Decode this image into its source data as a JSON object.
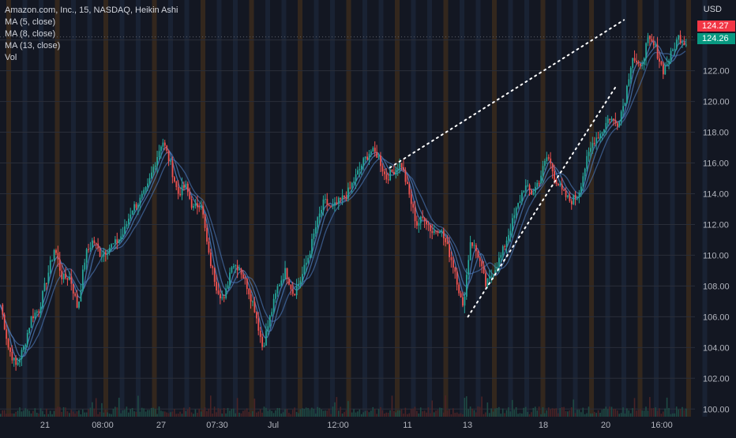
{
  "legend": {
    "title": "Amazon.com, Inc., 15, NASDAQ, Heikin Ashi",
    "ma5": "MA (5, close)",
    "ma8": "MA (8, close)",
    "ma13": "MA (13, close)",
    "vol": "Vol"
  },
  "currency": "USD",
  "price_tags": [
    {
      "label": "124.27",
      "value": 124.27,
      "color": "#f23645"
    },
    {
      "label": "124.26",
      "value": 124.26,
      "color": "#089981"
    }
  ],
  "colors": {
    "background": "#131722",
    "up": "#26a69a",
    "down": "#ef5350",
    "ma": "#4a77b4",
    "session_band_orange": "#3a2a1c",
    "session_band_blue": "#1b2436",
    "trendline": "#ffffff"
  },
  "chart_data": {
    "type": "candlestick",
    "style": "Heikin Ashi",
    "symbol": "Amazon.com, Inc.",
    "exchange": "NASDAQ",
    "interval": "15",
    "y_axis": {
      "ticks": [
        "100.00",
        "102.00",
        "104.00",
        "106.00",
        "108.00",
        "110.00",
        "112.00",
        "114.00",
        "116.00",
        "118.00",
        "120.00",
        "122.00",
        "124.00"
      ],
      "range": [
        99.5,
        126.6
      ]
    },
    "x_axis": {
      "ticks": [
        "21",
        "08:00",
        "27",
        "07:30",
        "Jul",
        "12:00",
        "11",
        "13",
        "18",
        "20",
        "16:00"
      ]
    },
    "price_path": [
      [
        0,
        106.8
      ],
      [
        1,
        104.0
      ],
      [
        2,
        102.8
      ],
      [
        3,
        104.0
      ],
      [
        4,
        106.0
      ],
      [
        5,
        106.5
      ],
      [
        6,
        108.5
      ],
      [
        7,
        110.5
      ],
      [
        8,
        108.5
      ],
      [
        9,
        108.6
      ],
      [
        10,
        106.5
      ],
      [
        11,
        110.0
      ],
      [
        12,
        111.0
      ],
      [
        13,
        110.0
      ],
      [
        14,
        110.5
      ],
      [
        15,
        110.8
      ],
      [
        16,
        111.5
      ],
      [
        17,
        113.0
      ],
      [
        18,
        113.5
      ],
      [
        19,
        114.3
      ],
      [
        20,
        116.0
      ],
      [
        21,
        117.5
      ],
      [
        22,
        116.0
      ],
      [
        23,
        114.0
      ],
      [
        24,
        114.5
      ],
      [
        25,
        113.0
      ],
      [
        26,
        113.5
      ],
      [
        27,
        110.0
      ],
      [
        28,
        108.0
      ],
      [
        29,
        107.0
      ],
      [
        30,
        109.5
      ],
      [
        31,
        109.2
      ],
      [
        32,
        108.0
      ],
      [
        33,
        106.5
      ],
      [
        34,
        104.0
      ],
      [
        35,
        106.0
      ],
      [
        36,
        108.0
      ],
      [
        37,
        109.0
      ],
      [
        38,
        107.5
      ],
      [
        39,
        108.5
      ],
      [
        40,
        110.0
      ],
      [
        41,
        112.0
      ],
      [
        42,
        113.5
      ],
      [
        43,
        113.0
      ],
      [
        44,
        113.5
      ],
      [
        45,
        114.0
      ],
      [
        46,
        115.0
      ],
      [
        47,
        116.0
      ],
      [
        48,
        116.8
      ],
      [
        49,
        116.5
      ],
      [
        50,
        115.0
      ],
      [
        51,
        115.5
      ],
      [
        52,
        116.0
      ],
      [
        53,
        114.0
      ],
      [
        54,
        112.0
      ],
      [
        55,
        112.5
      ],
      [
        56,
        111.5
      ],
      [
        57,
        111.8
      ],
      [
        58,
        110.5
      ],
      [
        59,
        109.0
      ],
      [
        60,
        106.5
      ],
      [
        61,
        111.0
      ],
      [
        62,
        110.0
      ],
      [
        63,
        108.0
      ],
      [
        64,
        109.0
      ],
      [
        65,
        110.0
      ],
      [
        66,
        111.5
      ],
      [
        67,
        113.0
      ],
      [
        68,
        114.5
      ],
      [
        69,
        114.0
      ],
      [
        70,
        115.0
      ],
      [
        71,
        116.5
      ],
      [
        72,
        115.0
      ],
      [
        73,
        114.0
      ],
      [
        74,
        113.5
      ],
      [
        75,
        114.0
      ],
      [
        76,
        116.0
      ],
      [
        77,
        117.5
      ],
      [
        78,
        118.0
      ],
      [
        79,
        119.0
      ],
      [
        80,
        118.5
      ],
      [
        81,
        120.0
      ],
      [
        82,
        123.0
      ],
      [
        83,
        122.0
      ],
      [
        84,
        124.0
      ],
      [
        85,
        123.5
      ],
      [
        86,
        122.0
      ],
      [
        87,
        123.0
      ],
      [
        88,
        124.2
      ],
      [
        89,
        123.8
      ]
    ],
    "bars": 90,
    "moving_averages": [
      {
        "name": "MA (5, close)",
        "period": 5
      },
      {
        "name": "MA (8, close)",
        "period": 8
      },
      {
        "name": "MA (13, close)",
        "period": 13
      }
    ],
    "trendlines": [
      {
        "from": [
          60,
          106.0
        ],
        "to": [
          79,
          121.0
        ],
        "style": "dotted"
      },
      {
        "from": [
          50,
          115.7
        ],
        "to": [
          80,
          125.3
        ],
        "style": "dotted"
      }
    ],
    "grid": true
  }
}
